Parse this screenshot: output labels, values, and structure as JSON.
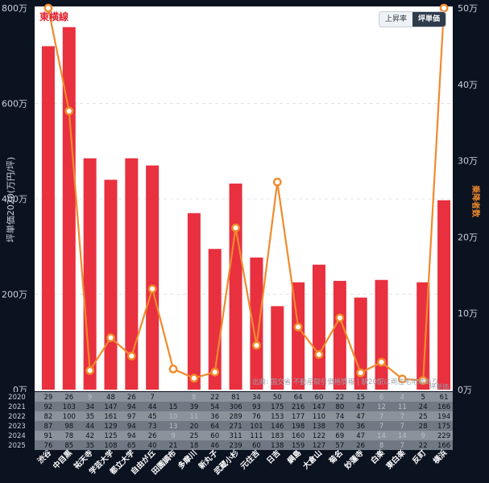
{
  "chart_data": {
    "type": "bar",
    "title": "東横線",
    "categories": [
      "渋谷",
      "中目黒",
      "祐天寺",
      "学芸大学",
      "都立大学",
      "自由が丘",
      "田園調布",
      "多摩川",
      "新丸子",
      "武蔵小杉",
      "元住吉",
      "日吉",
      "綱島",
      "大倉山",
      "菊名",
      "妙蓮寺",
      "白楽",
      "東白楽",
      "反町",
      "横浜"
    ],
    "series": [
      {
        "name": "坪単価",
        "axis": "left",
        "type": "bar",
        "color": "#e8303f",
        "values": [
          720,
          760,
          485,
          440,
          485,
          470,
          null,
          370,
          295,
          432,
          277,
          175,
          225,
          262,
          228,
          193,
          230,
          null,
          225,
          397
        ]
      },
      {
        "name": "乗降者数",
        "axis": "right",
        "type": "line",
        "color": "#f08a2c",
        "values": [
          50,
          36.5,
          2.5,
          6.8,
          4.4,
          13.2,
          2.7,
          1.5,
          2.3,
          21.2,
          5.8,
          27.2,
          8.2,
          4.6,
          9.4,
          2.2,
          3.6,
          1.4,
          1.2,
          50
        ]
      }
    ],
    "left_axis": {
      "label": "坪単価2020(万円/坪)",
      "min": 0,
      "max": 800,
      "ticks": [
        0,
        200,
        400,
        600,
        800
      ],
      "tick_labels": [
        "0万",
        "200万",
        "400万",
        "600万",
        "800万"
      ]
    },
    "right_axis": {
      "label": "乗降者数",
      "min": 0,
      "max": 50,
      "ticks": [
        0,
        10,
        20,
        30,
        40,
        50
      ],
      "tick_labels": [
        "0万",
        "10万",
        "20万",
        "30万",
        "40万",
        "50万"
      ]
    },
    "grid": true,
    "source_note": "出典: 国交省 不動産取引価格情報 | 駅20駅に両住宅地域あり",
    "unit_note": "坪単価",
    "table": {
      "years": [
        "2020",
        "2021",
        "2022",
        "2023",
        "2024",
        "2025"
      ],
      "rows": [
        [
          "29",
          "26",
          "9",
          "48",
          "26",
          "7",
          "",
          "8",
          "22",
          "81",
          "34",
          "50",
          "64",
          "60",
          "22",
          "15",
          "6",
          "4",
          "5",
          "61"
        ],
        [
          "92",
          "103",
          "34",
          "147",
          "94",
          "44",
          "15",
          "39",
          "54",
          "306",
          "93",
          "175",
          "216",
          "147",
          "80",
          "47",
          "12",
          "11",
          "24",
          "166"
        ],
        [
          "82",
          "100",
          "35",
          "161",
          "97",
          "45",
          "10",
          "11",
          "36",
          "289",
          "76",
          "153",
          "177",
          "110",
          "74",
          "47",
          "7",
          "7",
          "25",
          "194"
        ],
        [
          "87",
          "98",
          "44",
          "129",
          "94",
          "73",
          "13",
          "20",
          "64",
          "271",
          "101",
          "146",
          "198",
          "138",
          "70",
          "36",
          "7",
          "7",
          "28",
          "175"
        ],
        [
          "91",
          "78",
          "42",
          "125",
          "94",
          "26",
          "9",
          "25",
          "60",
          "311",
          "111",
          "183",
          "160",
          "122",
          "69",
          "47",
          "14",
          "14",
          "9",
          "229"
        ],
        [
          "76",
          "85",
          "35",
          "108",
          "65",
          "40",
          "21",
          "18",
          "46",
          "239",
          "60",
          "138",
          "159",
          "127",
          "57",
          "26",
          "8",
          "7",
          "22",
          "166"
        ]
      ],
      "dim_rows": [
        [
          false,
          false,
          true,
          false,
          false,
          false,
          false,
          true,
          false,
          false,
          false,
          false,
          false,
          false,
          false,
          false,
          true,
          true,
          false,
          false
        ],
        [
          false,
          false,
          false,
          false,
          false,
          false,
          false,
          false,
          false,
          false,
          false,
          false,
          false,
          false,
          false,
          false,
          true,
          true,
          false,
          false
        ],
        [
          false,
          false,
          false,
          false,
          false,
          false,
          true,
          true,
          false,
          false,
          false,
          false,
          false,
          false,
          false,
          false,
          true,
          true,
          false,
          false
        ],
        [
          false,
          false,
          false,
          false,
          false,
          false,
          true,
          false,
          false,
          false,
          false,
          false,
          false,
          false,
          false,
          false,
          true,
          true,
          false,
          false
        ],
        [
          false,
          false,
          false,
          false,
          false,
          false,
          true,
          false,
          false,
          false,
          false,
          false,
          false,
          false,
          false,
          false,
          true,
          true,
          true,
          false
        ],
        [
          false,
          false,
          false,
          false,
          false,
          false,
          false,
          false,
          false,
          false,
          false,
          false,
          false,
          false,
          false,
          false,
          true,
          true,
          false,
          false
        ]
      ]
    }
  },
  "controls": {
    "rate_label": "上昇率",
    "price_label": "坪単価"
  },
  "colors": {
    "bar": "#e8303f",
    "line": "#f08a2c",
    "background": "#0b1220",
    "plot_bg": "#ffffff",
    "title": "#e01f2d"
  }
}
